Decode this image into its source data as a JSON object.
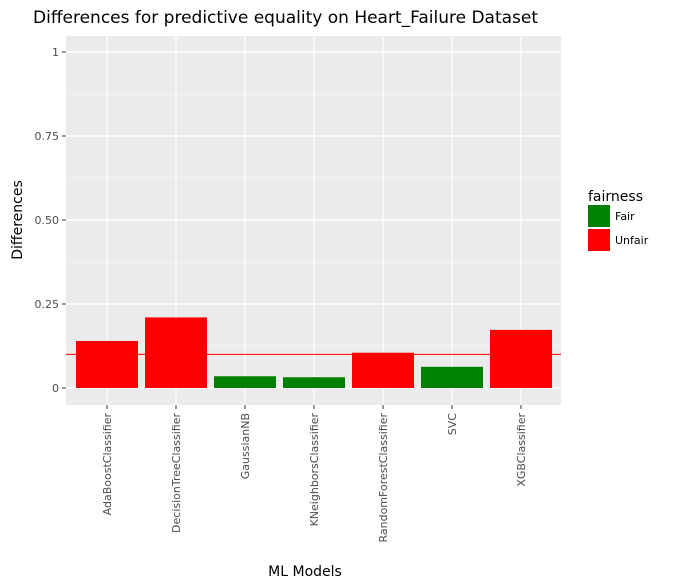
{
  "chart_data": {
    "type": "bar",
    "title": "Differences for predictive equality on Heart_Failure Dataset",
    "xlabel": "ML Models",
    "ylabel": "Differences",
    "ylim": [
      0,
      1
    ],
    "y_ticks": [
      0,
      0.25,
      0.5,
      0.75,
      1
    ],
    "y_tick_labels": [
      "0",
      "0.25",
      "0.50",
      "0.75",
      "1"
    ],
    "categories": [
      "AdaBoostClassifier",
      "DecisionTreeClassifier",
      "GaussianNB",
      "KNeighborsClassifier",
      "RandomForestClassifier",
      "SVC",
      "XGBClassifier"
    ],
    "values": [
      0.14,
      0.21,
      0.035,
      0.032,
      0.105,
      0.063,
      0.173
    ],
    "fairness": [
      "Unfair",
      "Unfair",
      "Fair",
      "Fair",
      "Unfair",
      "Fair",
      "Unfair"
    ],
    "threshold": 0.1,
    "threshold_color": "#ff0000",
    "grid": true,
    "legend": {
      "title": "fairness",
      "placement": "right",
      "entries": [
        {
          "label": "Fair",
          "color": "#008000"
        },
        {
          "label": "Unfair",
          "color": "#ff0000"
        }
      ]
    },
    "panel_color": "#ebebeb"
  }
}
